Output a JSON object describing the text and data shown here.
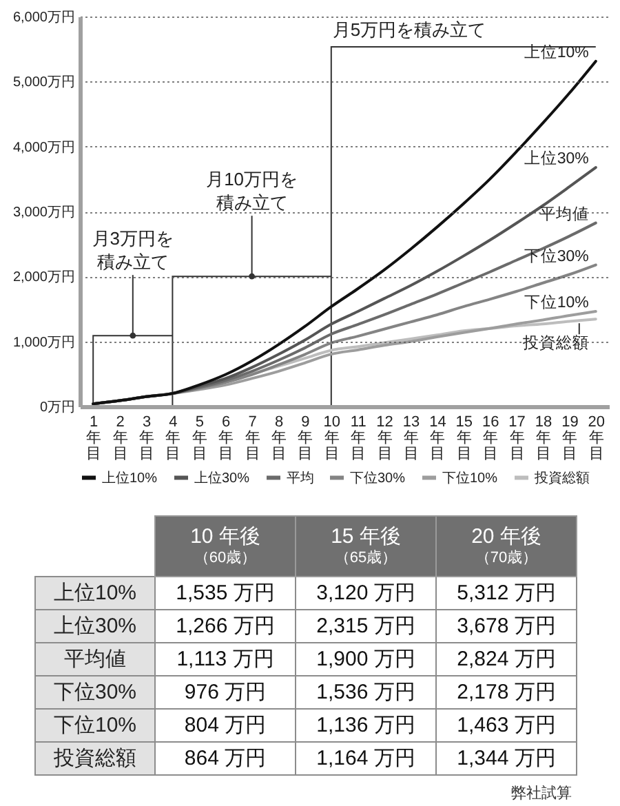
{
  "chart_data": [
    {
      "type": "line",
      "categories": [
        "1年目",
        "2年目",
        "3年目",
        "4年目",
        "5年目",
        "6年目",
        "7年目",
        "8年目",
        "9年目",
        "10年目",
        "11年目",
        "12年目",
        "13年目",
        "14年目",
        "15年目",
        "16年目",
        "17年目",
        "18年目",
        "19年目",
        "20年目"
      ],
      "series": [
        {
          "name": "上位10%",
          "color": "#111111",
          "values": [
            40,
            90,
            150,
            200,
            330,
            490,
            700,
            950,
            1230,
            1535,
            1810,
            2100,
            2420,
            2760,
            3120,
            3500,
            3920,
            4360,
            4820,
            5312
          ]
        },
        {
          "name": "上位30%",
          "color": "#555555",
          "values": [
            40,
            90,
            150,
            200,
            310,
            430,
            600,
            800,
            1020,
            1266,
            1460,
            1660,
            1860,
            2080,
            2315,
            2560,
            2820,
            3090,
            3380,
            3678
          ]
        },
        {
          "name": "平均",
          "color": "#6b6b6b",
          "values": [
            40,
            90,
            150,
            200,
            290,
            400,
            540,
            710,
            900,
            1113,
            1260,
            1410,
            1570,
            1730,
            1900,
            2070,
            2250,
            2430,
            2620,
            2824
          ]
        },
        {
          "name": "下位30%",
          "color": "#848484",
          "values": [
            40,
            90,
            150,
            200,
            280,
            370,
            490,
            640,
            800,
            976,
            1080,
            1190,
            1300,
            1410,
            1536,
            1650,
            1770,
            1900,
            2030,
            2178
          ]
        },
        {
          "name": "下位10%",
          "color": "#9d9d9d",
          "values": [
            40,
            90,
            150,
            200,
            260,
            330,
            430,
            540,
            670,
            804,
            870,
            940,
            1000,
            1070,
            1136,
            1200,
            1270,
            1330,
            1400,
            1463
          ]
        },
        {
          "name": "投資総額",
          "color": "#bdbdbd",
          "values": [
            40,
            90,
            150,
            200,
            290,
            390,
            500,
            620,
            740,
            864,
            920,
            980,
            1040,
            1100,
            1164,
            1200,
            1240,
            1270,
            1310,
            1344
          ]
        }
      ],
      "ylim": [
        0,
        6000
      ],
      "yticks": [
        {
          "value": 0,
          "label": "0万円"
        },
        {
          "value": 1000,
          "label": "1,000万円"
        },
        {
          "value": 2000,
          "label": "2,000万円"
        },
        {
          "value": 3000,
          "label": "3,000万円"
        },
        {
          "value": 4000,
          "label": "4,000万円"
        },
        {
          "value": 5000,
          "label": "5,000万円"
        },
        {
          "value": 6000,
          "label": "6,000万円"
        }
      ],
      "grid": "y",
      "legend": "bottom",
      "bands": [
        {
          "axis": "x",
          "from": "1年目",
          "to": "4年目",
          "label": "月3万円を積み立て"
        },
        {
          "axis": "x",
          "from": "4年目",
          "to": "10年目",
          "label": "月10万円を積み立て"
        },
        {
          "axis": "x",
          "from": "10年目",
          "to": "20年目",
          "label": "月5万円を積み立て"
        }
      ],
      "annotations": [
        {
          "text": "上位10%",
          "x": "20年目",
          "y": 5312
        },
        {
          "text": "上位30%",
          "x": "20年目",
          "y": 3678
        },
        {
          "text": "平均値",
          "x": "20年目",
          "y": 2824
        },
        {
          "text": "下位30%",
          "x": "20年目",
          "y": 2178
        },
        {
          "text": "下位10%",
          "x": "20年目",
          "y": 1463
        },
        {
          "text": "投資総額",
          "x": "20年目",
          "y": 1344
        }
      ]
    },
    {
      "type": "other",
      "categories": [
        "10 年後（60歳）",
        "15 年後（65歳）",
        "20 年後（70歳）"
      ],
      "y_categories": [
        "上位10%",
        "上位30%",
        "平均値",
        "下位30%",
        "下位10%",
        "投資総額"
      ],
      "cell_labels": [
        [
          "1,535 万円",
          "3,120 万円",
          "5,312 万円"
        ],
        [
          "1,266 万円",
          "2,315 万円",
          "3,678 万円"
        ],
        [
          "1,113 万円",
          "1,900 万円",
          "2,824 万円"
        ],
        [
          "976 万円",
          "1,536 万円",
          "2,178 万円"
        ],
        [
          "804 万円",
          "1,136 万円",
          "1,463 万円"
        ],
        [
          "864 万円",
          "1,164 万円",
          "1,344 万円"
        ]
      ],
      "annotations": [
        "弊社試算"
      ]
    }
  ]
}
